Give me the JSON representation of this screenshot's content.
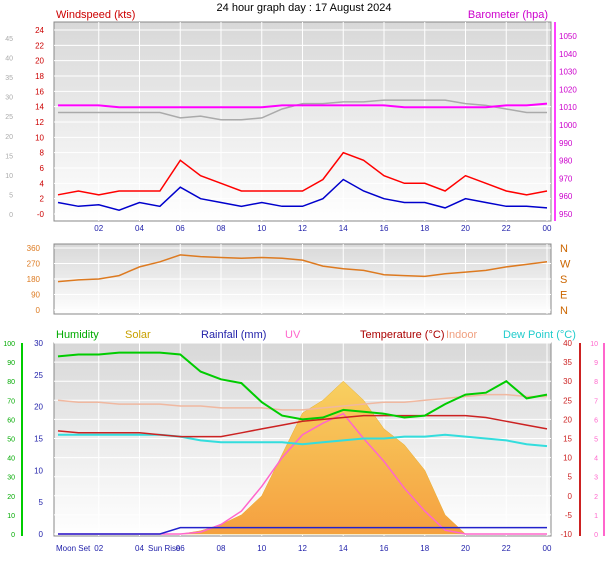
{
  "title": "24 hour graph day : 17 August 2024",
  "x_tick_labels": [
    "02",
    "04",
    "06",
    "08",
    "10",
    "12",
    "14",
    "16",
    "18",
    "20",
    "22",
    "00"
  ],
  "bottom_markers": {
    "moonset": "Moon Set",
    "sunrise": "Sun Rise"
  },
  "colors": {
    "wind_gust": "#ff0000",
    "wind_avg": "#0000cc",
    "barometer": "#ff00ff",
    "baro_grey": "#aaaaaa",
    "direction": "#dd7a20",
    "humidity": "#00cc00",
    "solar": "#f2c045",
    "rainfall": "#2222cc",
    "uv": "#ff66cc",
    "temperature": "#cc2222",
    "indoor": "#f0b8a0",
    "dewpoint": "#33dddd"
  },
  "chart_data": [
    {
      "type": "line",
      "x_hours": [
        0,
        1,
        2,
        3,
        4,
        5,
        6,
        7,
        8,
        9,
        10,
        11,
        12,
        13,
        14,
        15,
        16,
        17,
        18,
        19,
        20,
        21,
        22,
        23,
        24
      ],
      "left_axis": {
        "label": "Windspeed (kts)",
        "ticks": [
          0,
          2,
          4,
          6,
          8,
          10,
          12,
          14,
          16,
          18,
          20,
          22,
          24
        ],
        "outer_ticks": [
          0,
          5,
          10,
          15,
          20,
          25,
          30,
          35,
          40,
          45
        ]
      },
      "right_axis": {
        "label": "Barometer (hpa)",
        "ticks": [
          950,
          960,
          970,
          980,
          990,
          1000,
          1010,
          1020,
          1030,
          1040,
          1050
        ]
      },
      "series": [
        {
          "name": "Windspeed gust",
          "values": [
            2.5,
            3,
            2.5,
            3,
            3,
            3,
            7,
            5,
            4,
            3,
            3,
            3,
            3,
            4.5,
            8,
            7,
            5,
            4,
            4,
            3,
            5,
            4,
            3,
            2.5,
            3
          ]
        },
        {
          "name": "Windspeed avg",
          "values": [
            1.5,
            1,
            1.2,
            0.5,
            1.5,
            1,
            3.5,
            2,
            1.5,
            1,
            1.5,
            1,
            1,
            2,
            4.5,
            3,
            2,
            1.5,
            1.5,
            0.8,
            2,
            1.5,
            1,
            1,
            0.8
          ]
        },
        {
          "name": "Barometer",
          "values": [
            1011,
            1011,
            1011,
            1010,
            1010,
            1010,
            1010,
            1010,
            1010,
            1010,
            1010,
            1011,
            1011,
            1011,
            1011,
            1011,
            1011,
            1010,
            1010,
            1010,
            1010,
            1010,
            1011,
            1011,
            1012
          ]
        },
        {
          "name": "Barometer (previous)",
          "values": [
            1007,
            1007,
            1007,
            1007,
            1007,
            1007,
            1004,
            1005,
            1003,
            1003,
            1004,
            1009,
            1012,
            1012,
            1013,
            1013,
            1014,
            1014,
            1014,
            1014,
            1012,
            1011,
            1009,
            1007,
            1007
          ]
        }
      ]
    },
    {
      "type": "line",
      "x_hours": [
        0,
        1,
        2,
        3,
        4,
        5,
        6,
        7,
        8,
        9,
        10,
        11,
        12,
        13,
        14,
        15,
        16,
        17,
        18,
        19,
        20,
        21,
        22,
        23,
        24
      ],
      "left_axis": {
        "ticks": [
          0,
          90,
          180,
          270,
          360
        ]
      },
      "right_axis": {
        "ticks": [
          "N",
          "W",
          "S",
          "E",
          "N"
        ]
      },
      "series": [
        {
          "name": "Wind direction",
          "values": [
            165,
            175,
            180,
            200,
            250,
            280,
            320,
            310,
            305,
            300,
            305,
            300,
            290,
            255,
            240,
            230,
            205,
            200,
            195,
            210,
            220,
            230,
            250,
            265,
            280
          ]
        }
      ]
    },
    {
      "type": "area",
      "x_hours": [
        0,
        1,
        2,
        3,
        4,
        5,
        6,
        7,
        8,
        9,
        10,
        11,
        12,
        13,
        14,
        15,
        16,
        17,
        18,
        19,
        20,
        21,
        22,
        23,
        24
      ],
      "left_axis": {
        "label": "Humidity",
        "ticks": [
          0,
          10,
          20,
          30,
          40,
          50,
          60,
          70,
          80,
          90,
          100
        ]
      },
      "rain_axis": {
        "label": "Rainfall (mm)",
        "ticks": [
          0,
          5,
          10,
          15,
          20,
          25,
          30
        ]
      },
      "temp_axis": {
        "label": "Temperature (°C)",
        "ticks": [
          -10,
          -5,
          0,
          5,
          10,
          15,
          20,
          25,
          30,
          35,
          40
        ]
      },
      "uv_axis": {
        "label": "UV",
        "ticks": [
          0,
          1,
          2,
          3,
          4,
          5,
          6,
          7,
          8,
          9,
          10
        ]
      },
      "legend_labels": [
        "Humidity",
        "Solar",
        "Rainfall (mm)",
        "UV",
        "Temperature (°C)",
        "Indoor",
        "Dew Point (°C)"
      ],
      "series": [
        {
          "name": "Humidity",
          "values": [
            93,
            94,
            94,
            95,
            95,
            95,
            94,
            85,
            81,
            79,
            69,
            62,
            60,
            61,
            65,
            64,
            63,
            61,
            62,
            68,
            73,
            74,
            80,
            71,
            73
          ]
        },
        {
          "name": "Solar",
          "values": [
            0,
            0,
            0,
            0,
            0,
            0,
            0,
            10,
            30,
            60,
            120,
            250,
            380,
            420,
            480,
            420,
            330,
            280,
            200,
            60,
            0,
            0,
            0,
            0,
            0
          ]
        },
        {
          "name": "Rainfall (mm)",
          "values": [
            0,
            0,
            0,
            0,
            0,
            0,
            1,
            1,
            1,
            1,
            1,
            1,
            1,
            1,
            1,
            1,
            1,
            1,
            1,
            1,
            1,
            1,
            1,
            1,
            1
          ]
        },
        {
          "name": "UV",
          "values": [
            0,
            0,
            0,
            0,
            0,
            0,
            0,
            0.1,
            0.5,
            1.2,
            2.5,
            4,
            5.2,
            5.8,
            6.3,
            5,
            3.8,
            2.4,
            1.2,
            0.2,
            0,
            0,
            0,
            0,
            0
          ]
        },
        {
          "name": "Temperature (°C)",
          "values": [
            17,
            16.5,
            16.5,
            16.5,
            16.5,
            16,
            15.5,
            15.5,
            15.5,
            16.5,
            17.5,
            18.5,
            19.5,
            20,
            20.5,
            21,
            21,
            21,
            21,
            21,
            21,
            20.5,
            19.5,
            18.5,
            17.5
          ]
        },
        {
          "name": "Indoor",
          "values": [
            25,
            24.5,
            24.5,
            24,
            24,
            24,
            23.5,
            23.5,
            23,
            23,
            23,
            22.5,
            22.5,
            23,
            23.5,
            24,
            24.5,
            24.5,
            25,
            25.5,
            26,
            26.5,
            26.5,
            26,
            26
          ]
        },
        {
          "name": "Dew Point (°C)",
          "values": [
            16,
            16,
            16,
            16,
            16,
            16,
            15.5,
            14.5,
            14,
            14,
            14,
            14,
            13.5,
            14,
            14.5,
            15,
            15,
            15.5,
            15.5,
            16,
            15.5,
            15,
            14.5,
            13.5,
            13
          ]
        }
      ]
    }
  ]
}
